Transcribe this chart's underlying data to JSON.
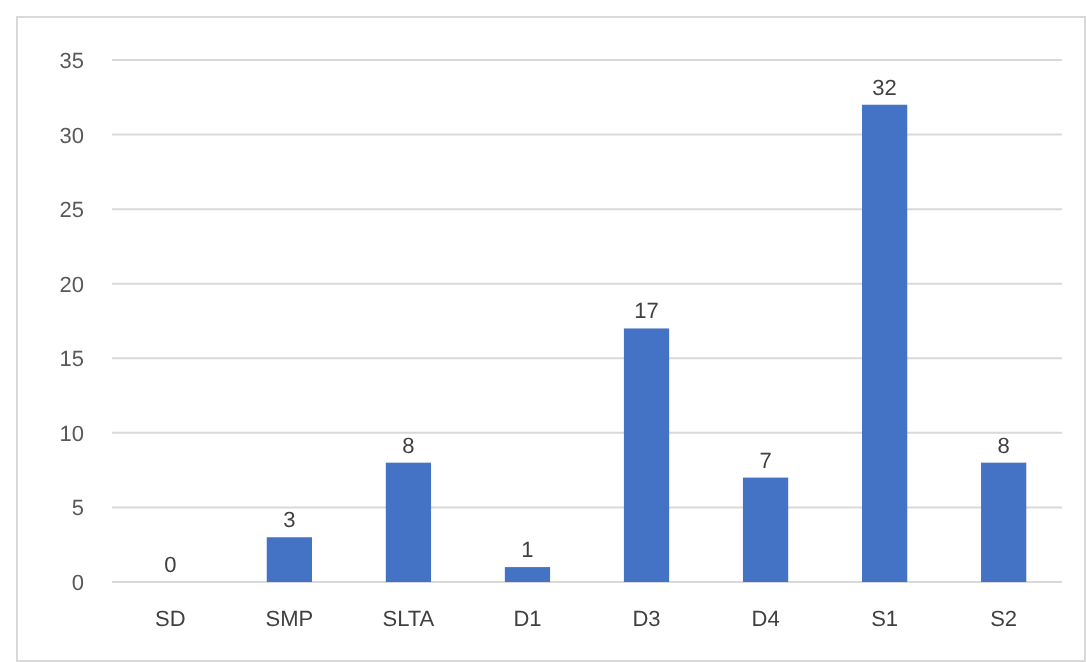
{
  "chart_data": {
    "type": "bar",
    "categories": [
      "SD",
      "SMP",
      "SLTA",
      "D1",
      "D3",
      "D4",
      "S1",
      "S2"
    ],
    "values": [
      0,
      3,
      8,
      1,
      17,
      7,
      32,
      8
    ],
    "color": "#4472c4",
    "ylim": [
      0,
      35
    ],
    "yticks": [
      0,
      5,
      10,
      15,
      20,
      25,
      30,
      35
    ],
    "grid": "y",
    "data_labels": true
  }
}
